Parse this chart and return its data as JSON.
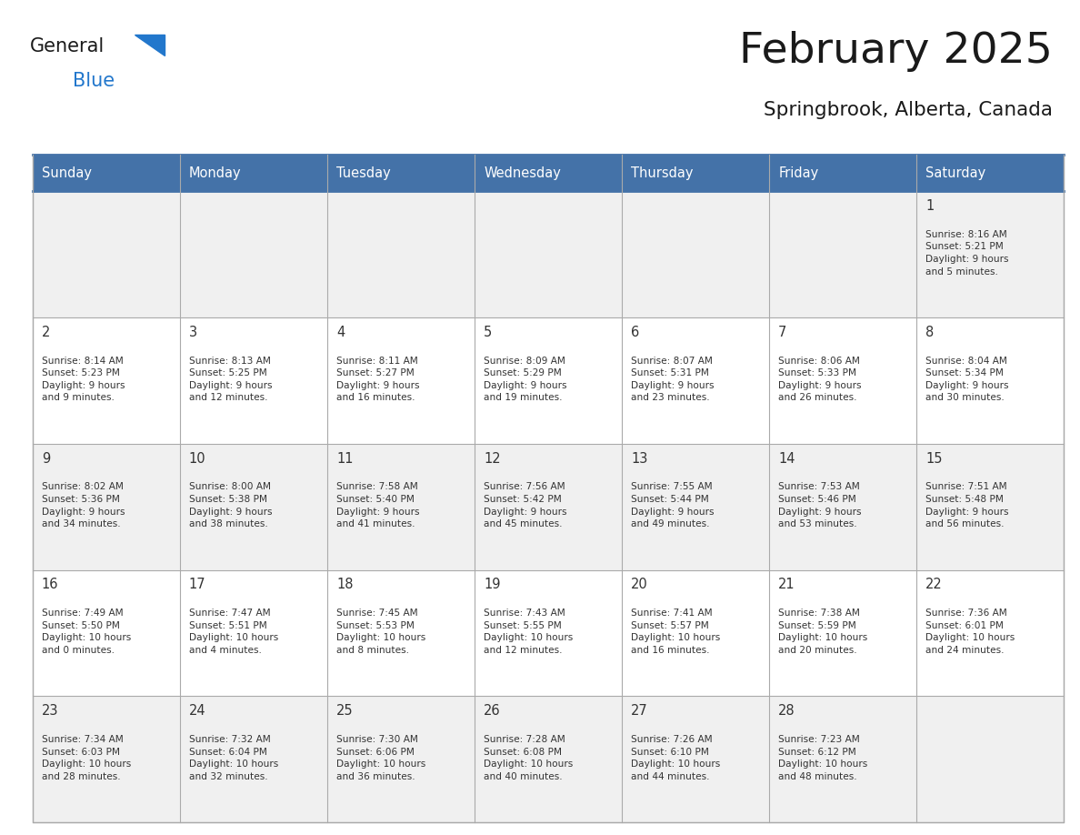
{
  "title": "February 2025",
  "subtitle": "Springbrook, Alberta, Canada",
  "days_of_week": [
    "Sunday",
    "Monday",
    "Tuesday",
    "Wednesday",
    "Thursday",
    "Friday",
    "Saturday"
  ],
  "header_bg": "#4472a8",
  "header_text": "#ffffff",
  "row_bg_odd": "#f0f0f0",
  "row_bg_even": "#ffffff",
  "border_color": "#4472a8",
  "text_color": "#333333",
  "title_color": "#1a1a1a",
  "subtitle_color": "#1a1a1a",
  "calendar": [
    [
      {
        "day": null,
        "info": ""
      },
      {
        "day": null,
        "info": ""
      },
      {
        "day": null,
        "info": ""
      },
      {
        "day": null,
        "info": ""
      },
      {
        "day": null,
        "info": ""
      },
      {
        "day": null,
        "info": ""
      },
      {
        "day": 1,
        "info": "Sunrise: 8:16 AM\nSunset: 5:21 PM\nDaylight: 9 hours\nand 5 minutes."
      }
    ],
    [
      {
        "day": 2,
        "info": "Sunrise: 8:14 AM\nSunset: 5:23 PM\nDaylight: 9 hours\nand 9 minutes."
      },
      {
        "day": 3,
        "info": "Sunrise: 8:13 AM\nSunset: 5:25 PM\nDaylight: 9 hours\nand 12 minutes."
      },
      {
        "day": 4,
        "info": "Sunrise: 8:11 AM\nSunset: 5:27 PM\nDaylight: 9 hours\nand 16 minutes."
      },
      {
        "day": 5,
        "info": "Sunrise: 8:09 AM\nSunset: 5:29 PM\nDaylight: 9 hours\nand 19 minutes."
      },
      {
        "day": 6,
        "info": "Sunrise: 8:07 AM\nSunset: 5:31 PM\nDaylight: 9 hours\nand 23 minutes."
      },
      {
        "day": 7,
        "info": "Sunrise: 8:06 AM\nSunset: 5:33 PM\nDaylight: 9 hours\nand 26 minutes."
      },
      {
        "day": 8,
        "info": "Sunrise: 8:04 AM\nSunset: 5:34 PM\nDaylight: 9 hours\nand 30 minutes."
      }
    ],
    [
      {
        "day": 9,
        "info": "Sunrise: 8:02 AM\nSunset: 5:36 PM\nDaylight: 9 hours\nand 34 minutes."
      },
      {
        "day": 10,
        "info": "Sunrise: 8:00 AM\nSunset: 5:38 PM\nDaylight: 9 hours\nand 38 minutes."
      },
      {
        "day": 11,
        "info": "Sunrise: 7:58 AM\nSunset: 5:40 PM\nDaylight: 9 hours\nand 41 minutes."
      },
      {
        "day": 12,
        "info": "Sunrise: 7:56 AM\nSunset: 5:42 PM\nDaylight: 9 hours\nand 45 minutes."
      },
      {
        "day": 13,
        "info": "Sunrise: 7:55 AM\nSunset: 5:44 PM\nDaylight: 9 hours\nand 49 minutes."
      },
      {
        "day": 14,
        "info": "Sunrise: 7:53 AM\nSunset: 5:46 PM\nDaylight: 9 hours\nand 53 minutes."
      },
      {
        "day": 15,
        "info": "Sunrise: 7:51 AM\nSunset: 5:48 PM\nDaylight: 9 hours\nand 56 minutes."
      }
    ],
    [
      {
        "day": 16,
        "info": "Sunrise: 7:49 AM\nSunset: 5:50 PM\nDaylight: 10 hours\nand 0 minutes."
      },
      {
        "day": 17,
        "info": "Sunrise: 7:47 AM\nSunset: 5:51 PM\nDaylight: 10 hours\nand 4 minutes."
      },
      {
        "day": 18,
        "info": "Sunrise: 7:45 AM\nSunset: 5:53 PM\nDaylight: 10 hours\nand 8 minutes."
      },
      {
        "day": 19,
        "info": "Sunrise: 7:43 AM\nSunset: 5:55 PM\nDaylight: 10 hours\nand 12 minutes."
      },
      {
        "day": 20,
        "info": "Sunrise: 7:41 AM\nSunset: 5:57 PM\nDaylight: 10 hours\nand 16 minutes."
      },
      {
        "day": 21,
        "info": "Sunrise: 7:38 AM\nSunset: 5:59 PM\nDaylight: 10 hours\nand 20 minutes."
      },
      {
        "day": 22,
        "info": "Sunrise: 7:36 AM\nSunset: 6:01 PM\nDaylight: 10 hours\nand 24 minutes."
      }
    ],
    [
      {
        "day": 23,
        "info": "Sunrise: 7:34 AM\nSunset: 6:03 PM\nDaylight: 10 hours\nand 28 minutes."
      },
      {
        "day": 24,
        "info": "Sunrise: 7:32 AM\nSunset: 6:04 PM\nDaylight: 10 hours\nand 32 minutes."
      },
      {
        "day": 25,
        "info": "Sunrise: 7:30 AM\nSunset: 6:06 PM\nDaylight: 10 hours\nand 36 minutes."
      },
      {
        "day": 26,
        "info": "Sunrise: 7:28 AM\nSunset: 6:08 PM\nDaylight: 10 hours\nand 40 minutes."
      },
      {
        "day": 27,
        "info": "Sunrise: 7:26 AM\nSunset: 6:10 PM\nDaylight: 10 hours\nand 44 minutes."
      },
      {
        "day": 28,
        "info": "Sunrise: 7:23 AM\nSunset: 6:12 PM\nDaylight: 10 hours\nand 48 minutes."
      },
      {
        "day": null,
        "info": ""
      }
    ]
  ],
  "logo_general_color": "#1a1a1a",
  "logo_blue_color": "#2277cc"
}
